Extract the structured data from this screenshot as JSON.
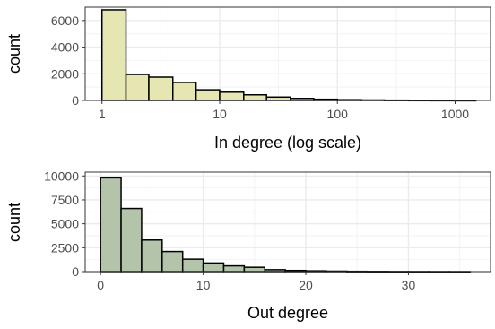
{
  "chart_data": [
    {
      "type": "bar",
      "xlabel": "In degree (log scale)",
      "ylabel": "count",
      "x_scale": "log10",
      "xlim": [
        0.72,
        2000
      ],
      "ylim": [
        0,
        7000
      ],
      "x_ticks": [
        1,
        10,
        100,
        1000
      ],
      "x_tick_labels": [
        "1",
        "10",
        "100",
        "1000"
      ],
      "y_ticks": [
        0,
        2000,
        4000,
        6000
      ],
      "y_tick_labels": [
        "0",
        "2000",
        "4000",
        "6000"
      ],
      "grid": true,
      "fill_color": "#e6e6b3",
      "bins": [
        {
          "x0": 1.0,
          "x1": 1.6,
          "count": 6800
        },
        {
          "x0": 1.6,
          "x1": 2.5,
          "count": 1950
        },
        {
          "x0": 2.5,
          "x1": 4.0,
          "count": 1750
        },
        {
          "x0": 4.0,
          "x1": 6.3,
          "count": 1350
        },
        {
          "x0": 6.3,
          "x1": 10.0,
          "count": 800
        },
        {
          "x0": 10.0,
          "x1": 16.0,
          "count": 620
        },
        {
          "x0": 16.0,
          "x1": 25.0,
          "count": 420
        },
        {
          "x0": 25.0,
          "x1": 40.0,
          "count": 250
        },
        {
          "x0": 40.0,
          "x1": 63.0,
          "count": 150
        },
        {
          "x0": 63.0,
          "x1": 100.0,
          "count": 90
        },
        {
          "x0": 100.0,
          "x1": 160.0,
          "count": 55
        },
        {
          "x0": 160.0,
          "x1": 250.0,
          "count": 35
        },
        {
          "x0": 250.0,
          "x1": 400.0,
          "count": 22
        },
        {
          "x0": 400.0,
          "x1": 630.0,
          "count": 14
        },
        {
          "x0": 630.0,
          "x1": 1000.0,
          "count": 9
        },
        {
          "x0": 1000.0,
          "x1": 1500.0,
          "count": 5
        }
      ]
    },
    {
      "type": "bar",
      "xlabel": "Out degree",
      "ylabel": "count",
      "x_scale": "linear",
      "xlim": [
        -1.5,
        38
      ],
      "ylim": [
        0,
        10400
      ],
      "x_ticks": [
        0,
        10,
        20,
        30
      ],
      "x_tick_labels": [
        "0",
        "10",
        "20",
        "30"
      ],
      "y_ticks": [
        0,
        2500,
        5000,
        7500,
        10000
      ],
      "y_tick_labels": [
        "0",
        "2500",
        "5000",
        "7500",
        "10000"
      ],
      "grid": true,
      "fill_color": "#b3c4ab",
      "bins": [
        {
          "x0": 0,
          "x1": 2,
          "count": 9800
        },
        {
          "x0": 2,
          "x1": 4,
          "count": 6600
        },
        {
          "x0": 4,
          "x1": 6,
          "count": 3300
        },
        {
          "x0": 6,
          "x1": 8,
          "count": 2100
        },
        {
          "x0": 8,
          "x1": 10,
          "count": 1300
        },
        {
          "x0": 10,
          "x1": 12,
          "count": 900
        },
        {
          "x0": 12,
          "x1": 14,
          "count": 600
        },
        {
          "x0": 14,
          "x1": 16,
          "count": 450
        },
        {
          "x0": 16,
          "x1": 18,
          "count": 200
        },
        {
          "x0": 18,
          "x1": 20,
          "count": 120
        },
        {
          "x0": 20,
          "x1": 22,
          "count": 80
        },
        {
          "x0": 22,
          "x1": 24,
          "count": 50
        },
        {
          "x0": 24,
          "x1": 26,
          "count": 30
        },
        {
          "x0": 26,
          "x1": 28,
          "count": 20
        },
        {
          "x0": 28,
          "x1": 30,
          "count": 12
        },
        {
          "x0": 30,
          "x1": 32,
          "count": 8
        },
        {
          "x0": 32,
          "x1": 34,
          "count": 5
        },
        {
          "x0": 34,
          "x1": 36,
          "count": 3
        }
      ]
    }
  ]
}
